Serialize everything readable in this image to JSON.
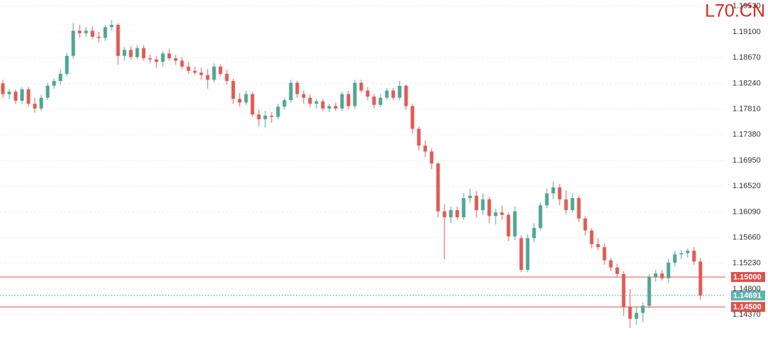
{
  "chart_data": {
    "type": "candlestick",
    "watermark": "L70.CN",
    "watermark_color": "#d42a20",
    "up_color": "#4fa594",
    "down_color": "#df5b56",
    "ylim": [
      1.1398,
      1.19635
    ],
    "yticks": [
      {
        "value": 1.1953,
        "label": "1.19530"
      },
      {
        "value": 1.191,
        "label": "1.19100"
      },
      {
        "value": 1.1867,
        "label": "1.18670"
      },
      {
        "value": 1.1824,
        "label": "1.18240"
      },
      {
        "value": 1.1781,
        "label": "1.17810"
      },
      {
        "value": 1.1738,
        "label": "1.17380"
      },
      {
        "value": 1.1695,
        "label": "1.16950"
      },
      {
        "value": 1.1652,
        "label": "1.16520"
      },
      {
        "value": 1.1609,
        "label": "1.16090"
      },
      {
        "value": 1.1566,
        "label": "1.15660"
      },
      {
        "value": 1.1523,
        "label": "1.15230"
      },
      {
        "value": 1.148,
        "label": "1.14800"
      },
      {
        "value": 1.1437,
        "label": "1.14370"
      }
    ],
    "grid": true,
    "levels": [
      {
        "value": 1.15,
        "label": "1.15000",
        "color": "#e0504c",
        "style": "solid"
      },
      {
        "value": 1.14691,
        "label": "1.14691",
        "color": "#5fb3ad",
        "style": "dotted"
      },
      {
        "value": 1.145,
        "label": "1.14500",
        "color": "#e0504c",
        "style": "solid"
      }
    ],
    "open": [
      1.1824,
      1.1806,
      1.181,
      1.1795,
      1.1814,
      1.179,
      1.1782,
      1.18,
      1.182,
      1.1828,
      1.184,
      1.187,
      1.1912,
      1.1908,
      1.1912,
      1.1902,
      1.19,
      1.1918,
      1.1922,
      1.187,
      1.188,
      1.1868,
      1.1883,
      1.1866,
      1.1864,
      1.186,
      1.1874,
      1.1866,
      1.1862,
      1.1852,
      1.1845,
      1.1842,
      1.1838,
      1.183,
      1.1852,
      1.184,
      1.1828,
      1.1798,
      1.1792,
      1.1806,
      1.1772,
      1.1764,
      1.177,
      1.1768,
      1.1785,
      1.1796,
      1.1825,
      1.1806,
      1.18,
      1.179,
      1.1794,
      1.1782,
      1.1786,
      1.1782,
      1.1806,
      1.1786,
      1.1825,
      1.1812,
      1.1802,
      1.1788,
      1.18,
      1.1812,
      1.18,
      1.182,
      1.1786,
      1.1748,
      1.172,
      1.171,
      1.169,
      1.161,
      1.16,
      1.1612,
      1.16,
      1.1632,
      1.1636,
      1.1612,
      1.163,
      1.1602,
      1.1608,
      1.1604,
      1.1568,
      1.1565,
      1.1512,
      1.1565,
      1.1582,
      1.162,
      1.164,
      1.165,
      1.163,
      1.1612,
      1.1632,
      1.1598,
      1.1578,
      1.1555,
      1.155,
      1.1528,
      1.1516,
      1.1505,
      1.145,
      1.143,
      1.144,
      1.1452,
      1.15,
      1.1506,
      1.1498,
      1.1524,
      1.1538,
      1.154,
      1.1544,
      1.1526
    ],
    "high": [
      1.183,
      1.1815,
      1.1814,
      1.1818,
      1.1818,
      1.18,
      1.1805,
      1.1825,
      1.1832,
      1.1848,
      1.1875,
      1.1925,
      1.1922,
      1.1918,
      1.192,
      1.191,
      1.1922,
      1.193,
      1.1925,
      1.1885,
      1.1886,
      1.1888,
      1.1888,
      1.1872,
      1.187,
      1.1878,
      1.1882,
      1.1872,
      1.1868,
      1.186,
      1.1852,
      1.185,
      1.1848,
      1.1858,
      1.1856,
      1.1846,
      1.1832,
      1.1808,
      1.1812,
      1.181,
      1.178,
      1.1778,
      1.1776,
      1.179,
      1.18,
      1.183,
      1.1828,
      1.1812,
      1.1806,
      1.1798,
      1.1798,
      1.179,
      1.1792,
      1.181,
      1.1812,
      1.183,
      1.183,
      1.1818,
      1.1806,
      1.1806,
      1.1816,
      1.1816,
      1.1828,
      1.1822,
      1.179,
      1.1752,
      1.1728,
      1.1715,
      1.1692,
      1.1622,
      1.1618,
      1.1618,
      1.164,
      1.1648,
      1.1644,
      1.164,
      1.1634,
      1.1614,
      1.162,
      1.1608,
      1.1618,
      1.157,
      1.1572,
      1.159,
      1.1625,
      1.1648,
      1.166,
      1.1656,
      1.1645,
      1.164,
      1.1636,
      1.1602,
      1.1582,
      1.1565,
      1.1556,
      1.1532,
      1.1522,
      1.151,
      1.148,
      1.145,
      1.1458,
      1.1505,
      1.1512,
      1.1512,
      1.153,
      1.1544,
      1.1545,
      1.1548,
      1.155,
      1.1532
    ],
    "low": [
      1.18,
      1.1797,
      1.179,
      1.179,
      1.1785,
      1.1775,
      1.1778,
      1.1796,
      1.1815,
      1.1822,
      1.1836,
      1.1865,
      1.19,
      1.1902,
      1.1898,
      1.1892,
      1.1895,
      1.1912,
      1.1855,
      1.1862,
      1.1864,
      1.1865,
      1.1862,
      1.1858,
      1.185,
      1.1852,
      1.1862,
      1.1855,
      1.1848,
      1.184,
      1.1838,
      1.183,
      1.1815,
      1.1826,
      1.1836,
      1.1822,
      1.179,
      1.1785,
      1.1788,
      1.1768,
      1.1752,
      1.175,
      1.1758,
      1.1764,
      1.178,
      1.1792,
      1.18,
      1.179,
      1.1784,
      1.1782,
      1.1778,
      1.1776,
      1.1778,
      1.1778,
      1.178,
      1.1782,
      1.1808,
      1.1796,
      1.1782,
      1.1784,
      1.1796,
      1.1796,
      1.1796,
      1.178,
      1.174,
      1.1712,
      1.17,
      1.168,
      1.16,
      1.153,
      1.159,
      1.1596,
      1.1596,
      1.1624,
      1.16,
      1.1604,
      1.159,
      1.1588,
      1.1596,
      1.156,
      1.1562,
      1.1508,
      1.1508,
      1.1558,
      1.1578,
      1.1615,
      1.163,
      1.162,
      1.1605,
      1.1608,
      1.1592,
      1.157,
      1.1548,
      1.1545,
      1.152,
      1.151,
      1.15,
      1.1435,
      1.1415,
      1.142,
      1.1425,
      1.1448,
      1.1492,
      1.1494,
      1.149,
      1.1518,
      1.153,
      1.1532,
      1.152,
      1.1462
    ],
    "close": [
      1.1806,
      1.181,
      1.1795,
      1.1814,
      1.179,
      1.1782,
      1.18,
      1.182,
      1.1828,
      1.184,
      1.187,
      1.1912,
      1.1908,
      1.1912,
      1.1902,
      1.19,
      1.1918,
      1.1922,
      1.187,
      1.188,
      1.1868,
      1.1883,
      1.1866,
      1.1864,
      1.186,
      1.1874,
      1.1866,
      1.1862,
      1.1852,
      1.1845,
      1.1842,
      1.1838,
      1.183,
      1.1852,
      1.184,
      1.1828,
      1.1798,
      1.1792,
      1.1806,
      1.1772,
      1.1764,
      1.177,
      1.1768,
      1.1785,
      1.1796,
      1.1825,
      1.1806,
      1.18,
      1.179,
      1.1794,
      1.1782,
      1.1786,
      1.1782,
      1.1806,
      1.1786,
      1.1825,
      1.1812,
      1.1802,
      1.1788,
      1.18,
      1.1812,
      1.18,
      1.182,
      1.1786,
      1.1748,
      1.172,
      1.171,
      1.169,
      1.161,
      1.16,
      1.1612,
      1.16,
      1.1632,
      1.1636,
      1.1612,
      1.163,
      1.1602,
      1.1608,
      1.1604,
      1.1568,
      1.161,
      1.1512,
      1.1565,
      1.1582,
      1.162,
      1.164,
      1.165,
      1.163,
      1.1612,
      1.1632,
      1.1598,
      1.1578,
      1.1555,
      1.155,
      1.1528,
      1.1516,
      1.1505,
      1.145,
      1.143,
      1.144,
      1.1452,
      1.15,
      1.1506,
      1.1498,
      1.1524,
      1.1538,
      1.154,
      1.1544,
      1.1526,
      1.1469
    ]
  }
}
